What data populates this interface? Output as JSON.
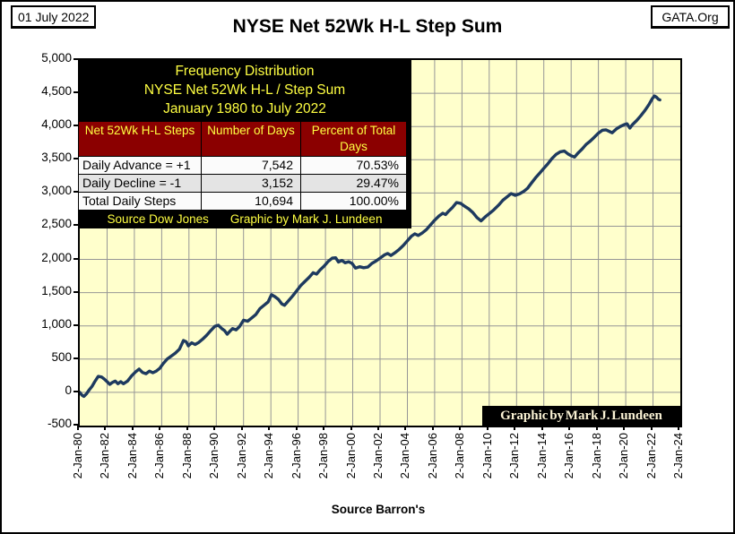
{
  "header": {
    "date_box": "01 July 2022",
    "org_box": "GATA.Org",
    "title": "NYSE Net 52Wk H-L Step Sum"
  },
  "overlay": {
    "title_lines": {
      "0": "Frequency Distribution",
      "1": "NYSE Net 52Wk H-L / Step Sum",
      "2": "January 1980 to July 2022"
    },
    "table": {
      "columns": {
        "0": "Net 52Wk H-L Steps",
        "1": "Number of Days",
        "2": "Percent of Total Days"
      },
      "rows": {
        "0": {
          "label": "Daily Advance = +1",
          "days": "7,542",
          "percent": "70.53%"
        },
        "1": {
          "label": "Daily Decline = -1",
          "days": "3,152",
          "percent": "29.47%"
        },
        "2": {
          "label": "Total Daily Steps",
          "days": "10,694",
          "percent": "100.00%"
        }
      },
      "footer_parts": {
        "0": "Source Dow Jones",
        "1": "Graphic by Mark J. Lundeen"
      }
    }
  },
  "watermark": "Graphic by Mark J. Lundeen",
  "footer": {
    "source": "Source Barron's"
  },
  "colors": {
    "plot_bg": "#ffffcc",
    "grid": "#969696",
    "line": "#1e3a5f",
    "table_header_bg": "#8b0000",
    "accent_yellow": "#ffff42",
    "overlay_bg": "#000000"
  },
  "chart_data": {
    "type": "line",
    "title": "NYSE Net 52Wk H-L Step Sum",
    "xlabel": "",
    "ylabel": "",
    "x_range_years": [
      1980,
      2024
    ],
    "y_range": [
      -500,
      5000
    ],
    "y_tick_interval": 500,
    "y_tick_labels": [
      "5,000",
      "4,500",
      "4,000",
      "3,500",
      "3,000",
      "2,500",
      "2,000",
      "1,500",
      "1,000",
      "500",
      "0",
      "-500"
    ],
    "x_tick_years": [
      1980,
      1982,
      1984,
      1986,
      1988,
      1990,
      1992,
      1994,
      1996,
      1998,
      2000,
      2002,
      2004,
      2006,
      2008,
      2010,
      2012,
      2014,
      2016,
      2018,
      2020,
      2022,
      2024
    ],
    "x_tick_labels": [
      "2-Jan-80",
      "2-Jan-82",
      "2-Jan-84",
      "2-Jan-86",
      "2-Jan-88",
      "2-Jan-90",
      "2-Jan-92",
      "2-Jan-94",
      "2-Jan-96",
      "2-Jan-98",
      "2-Jan-00",
      "2-Jan-02",
      "2-Jan-04",
      "2-Jan-06",
      "2-Jan-08",
      "2-Jan-10",
      "2-Jan-12",
      "2-Jan-14",
      "2-Jan-16",
      "2-Jan-18",
      "2-Jan-20",
      "2-Jan-22",
      "2-Jan-24"
    ],
    "grid": true,
    "legend": "none",
    "series": [
      {
        "name": "NYSE Net 52Wk H-L Step Sum",
        "color": "#1e3a5f",
        "points_year_value": [
          [
            1980.0,
            0
          ],
          [
            1980.15,
            -40
          ],
          [
            1980.3,
            -60
          ],
          [
            1980.5,
            -20
          ],
          [
            1980.7,
            40
          ],
          [
            1980.9,
            90
          ],
          [
            1981.1,
            160
          ],
          [
            1981.35,
            240
          ],
          [
            1981.6,
            230
          ],
          [
            1981.8,
            200
          ],
          [
            1982.0,
            160
          ],
          [
            1982.2,
            120
          ],
          [
            1982.4,
            150
          ],
          [
            1982.6,
            170
          ],
          [
            1982.8,
            130
          ],
          [
            1983.0,
            160
          ],
          [
            1983.2,
            130
          ],
          [
            1983.5,
            170
          ],
          [
            1983.8,
            250
          ],
          [
            1984.1,
            310
          ],
          [
            1984.35,
            350
          ],
          [
            1984.6,
            300
          ],
          [
            1984.85,
            280
          ],
          [
            1985.1,
            320
          ],
          [
            1985.35,
            295
          ],
          [
            1985.6,
            320
          ],
          [
            1985.85,
            360
          ],
          [
            1986.1,
            430
          ],
          [
            1986.4,
            500
          ],
          [
            1986.7,
            545
          ],
          [
            1987.0,
            590
          ],
          [
            1987.3,
            650
          ],
          [
            1987.6,
            780
          ],
          [
            1987.8,
            760
          ],
          [
            1987.95,
            700
          ],
          [
            1988.2,
            745
          ],
          [
            1988.45,
            720
          ],
          [
            1988.7,
            750
          ],
          [
            1989.0,
            800
          ],
          [
            1989.3,
            860
          ],
          [
            1989.6,
            930
          ],
          [
            1989.9,
            995
          ],
          [
            1990.15,
            1010
          ],
          [
            1990.4,
            960
          ],
          [
            1990.6,
            930
          ],
          [
            1990.8,
            875
          ],
          [
            1991.0,
            920
          ],
          [
            1991.2,
            960
          ],
          [
            1991.45,
            940
          ],
          [
            1991.7,
            990
          ],
          [
            1992.0,
            1085
          ],
          [
            1992.3,
            1070
          ],
          [
            1992.6,
            1120
          ],
          [
            1992.9,
            1170
          ],
          [
            1993.2,
            1260
          ],
          [
            1993.5,
            1310
          ],
          [
            1993.8,
            1360
          ],
          [
            1994.05,
            1470
          ],
          [
            1994.3,
            1440
          ],
          [
            1994.55,
            1400
          ],
          [
            1994.8,
            1330
          ],
          [
            1995.0,
            1310
          ],
          [
            1995.3,
            1380
          ],
          [
            1995.6,
            1450
          ],
          [
            1995.9,
            1530
          ],
          [
            1996.2,
            1610
          ],
          [
            1996.5,
            1670
          ],
          [
            1996.8,
            1730
          ],
          [
            1997.1,
            1800
          ],
          [
            1997.35,
            1780
          ],
          [
            1997.6,
            1840
          ],
          [
            1997.9,
            1900
          ],
          [
            1998.2,
            1970
          ],
          [
            1998.5,
            2020
          ],
          [
            1998.75,
            2025
          ],
          [
            1998.95,
            1960
          ],
          [
            1999.2,
            1985
          ],
          [
            1999.45,
            1950
          ],
          [
            1999.7,
            1965
          ],
          [
            1999.95,
            1940
          ],
          [
            2000.2,
            1870
          ],
          [
            2000.5,
            1890
          ],
          [
            2000.8,
            1875
          ],
          [
            2001.1,
            1885
          ],
          [
            2001.4,
            1940
          ],
          [
            2001.7,
            1975
          ],
          [
            2002.0,
            2020
          ],
          [
            2002.3,
            2065
          ],
          [
            2002.55,
            2090
          ],
          [
            2002.8,
            2060
          ],
          [
            2003.1,
            2100
          ],
          [
            2003.4,
            2150
          ],
          [
            2003.7,
            2210
          ],
          [
            2004.0,
            2280
          ],
          [
            2004.3,
            2350
          ],
          [
            2004.55,
            2385
          ],
          [
            2004.8,
            2360
          ],
          [
            2005.1,
            2400
          ],
          [
            2005.4,
            2450
          ],
          [
            2005.7,
            2520
          ],
          [
            2006.0,
            2590
          ],
          [
            2006.3,
            2650
          ],
          [
            2006.6,
            2695
          ],
          [
            2006.8,
            2675
          ],
          [
            2007.0,
            2720
          ],
          [
            2007.3,
            2780
          ],
          [
            2007.6,
            2855
          ],
          [
            2007.9,
            2845
          ],
          [
            2008.2,
            2800
          ],
          [
            2008.5,
            2760
          ],
          [
            2008.8,
            2705
          ],
          [
            2009.1,
            2630
          ],
          [
            2009.4,
            2580
          ],
          [
            2009.7,
            2640
          ],
          [
            2010.0,
            2690
          ],
          [
            2010.3,
            2740
          ],
          [
            2010.7,
            2820
          ],
          [
            2011.0,
            2890
          ],
          [
            2011.3,
            2940
          ],
          [
            2011.6,
            2990
          ],
          [
            2011.9,
            2965
          ],
          [
            2012.2,
            2985
          ],
          [
            2012.5,
            3020
          ],
          [
            2012.8,
            3070
          ],
          [
            2013.1,
            3150
          ],
          [
            2013.4,
            3230
          ],
          [
            2013.7,
            3300
          ],
          [
            2014.0,
            3370
          ],
          [
            2014.3,
            3440
          ],
          [
            2014.6,
            3520
          ],
          [
            2014.9,
            3580
          ],
          [
            2015.2,
            3620
          ],
          [
            2015.5,
            3630
          ],
          [
            2015.75,
            3590
          ],
          [
            2016.0,
            3560
          ],
          [
            2016.25,
            3540
          ],
          [
            2016.5,
            3600
          ],
          [
            2016.8,
            3660
          ],
          [
            2017.1,
            3730
          ],
          [
            2017.4,
            3780
          ],
          [
            2017.7,
            3840
          ],
          [
            2018.0,
            3900
          ],
          [
            2018.3,
            3945
          ],
          [
            2018.55,
            3950
          ],
          [
            2018.8,
            3925
          ],
          [
            2019.0,
            3905
          ],
          [
            2019.3,
            3960
          ],
          [
            2019.6,
            4000
          ],
          [
            2019.9,
            4030
          ],
          [
            2020.1,
            4040
          ],
          [
            2020.3,
            3975
          ],
          [
            2020.5,
            4030
          ],
          [
            2020.8,
            4090
          ],
          [
            2021.1,
            4160
          ],
          [
            2021.4,
            4240
          ],
          [
            2021.7,
            4330
          ],
          [
            2021.95,
            4420
          ],
          [
            2022.1,
            4460
          ],
          [
            2022.25,
            4440
          ],
          [
            2022.4,
            4410
          ],
          [
            2022.5,
            4400
          ]
        ]
      }
    ]
  }
}
